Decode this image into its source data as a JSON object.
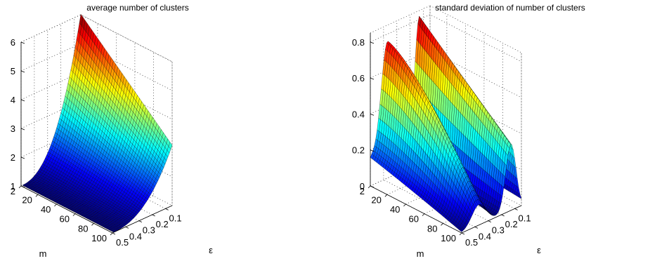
{
  "chart_data": [
    {
      "type": "surface",
      "title": "average number of clusters",
      "xlabel": "m",
      "ylabel": "ε",
      "zlabel": "",
      "x_ticks": [
        "2",
        "20",
        "40",
        "60",
        "80",
        "100"
      ],
      "y_ticks": [
        "0.5",
        "0.4",
        "0.3",
        "0.2",
        "0.1"
      ],
      "z_ticks": [
        "1",
        "2",
        "3",
        "4",
        "5",
        "6"
      ],
      "xlim": [
        2,
        100
      ],
      "ylim": [
        0.05,
        0.5
      ],
      "zlim": [
        1,
        6
      ],
      "colormap": "jet",
      "grid": true,
      "corners": {
        "m2_eps0.5": 1.0,
        "m100_eps0.5": 1.0,
        "m2_eps0.05": 6.0,
        "m100_eps0.05": 3.1
      }
    },
    {
      "type": "surface",
      "title": "standard deviation of number of clusters",
      "xlabel": "m",
      "ylabel": "ε",
      "zlabel": "",
      "x_ticks": [
        "2",
        "20",
        "40",
        "60",
        "80",
        "100"
      ],
      "y_ticks": [
        "0.5",
        "0.4",
        "0.3",
        "0.2",
        "0.1"
      ],
      "z_ticks": [
        "0",
        "0.2",
        "0.4",
        "0.6",
        "0.8"
      ],
      "xlim": [
        2,
        100
      ],
      "ylim": [
        0.05,
        0.5
      ],
      "zlim": [
        0,
        0.8
      ],
      "colormap": "jet",
      "grid": true,
      "peaks": [
        {
          "eps": 0.38,
          "m": 2,
          "value": 0.76
        },
        {
          "eps": 0.12,
          "m": 2,
          "value": 0.82
        }
      ]
    }
  ]
}
